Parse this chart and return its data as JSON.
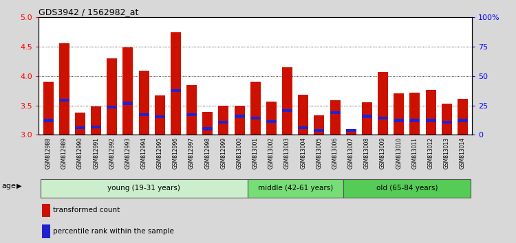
{
  "title": "GDS3942 / 1562982_at",
  "samples": [
    "GSM812988",
    "GSM812989",
    "GSM812990",
    "GSM812991",
    "GSM812992",
    "GSM812993",
    "GSM812994",
    "GSM812995",
    "GSM812996",
    "GSM812997",
    "GSM812998",
    "GSM812999",
    "GSM813000",
    "GSM813001",
    "GSM813002",
    "GSM813003",
    "GSM813004",
    "GSM813005",
    "GSM813006",
    "GSM813007",
    "GSM813008",
    "GSM813009",
    "GSM813010",
    "GSM813011",
    "GSM813012",
    "GSM813013",
    "GSM813014"
  ],
  "transformed_count": [
    3.9,
    4.56,
    3.38,
    3.48,
    4.3,
    4.48,
    4.09,
    3.67,
    4.74,
    3.85,
    3.39,
    3.5,
    3.5,
    3.9,
    3.57,
    4.15,
    3.68,
    3.33,
    3.59,
    3.05,
    3.55,
    4.06,
    3.7,
    3.72,
    3.76,
    3.53,
    3.61
  ],
  "percentile_pos": [
    3.22,
    3.56,
    3.1,
    3.11,
    3.45,
    3.51,
    3.32,
    3.28,
    3.73,
    3.32,
    3.08,
    3.19,
    3.29,
    3.26,
    3.2,
    3.39,
    3.1,
    3.05,
    3.35,
    3.05,
    3.29,
    3.26,
    3.22,
    3.22,
    3.22,
    3.19,
    3.22
  ],
  "percentile_height": [
    0.05,
    0.05,
    0.05,
    0.05,
    0.05,
    0.05,
    0.05,
    0.05,
    0.05,
    0.05,
    0.05,
    0.05,
    0.05,
    0.05,
    0.05,
    0.05,
    0.05,
    0.05,
    0.05,
    0.05,
    0.05,
    0.05,
    0.05,
    0.05,
    0.05,
    0.05,
    0.05
  ],
  "ymin": 3.0,
  "ymax": 5.0,
  "y2min": 0,
  "y2max": 100,
  "yticks": [
    3.0,
    3.5,
    4.0,
    4.5,
    5.0
  ],
  "y2ticks": [
    0,
    25,
    50,
    75,
    100
  ],
  "bar_color": "#CC1100",
  "percentile_color": "#2222CC",
  "groups": [
    {
      "label": "young (19-31 years)",
      "start": 0,
      "end": 13,
      "color": "#CCEECC"
    },
    {
      "label": "middle (42-61 years)",
      "start": 13,
      "end": 19,
      "color": "#77DD77"
    },
    {
      "label": "old (65-84 years)",
      "start": 19,
      "end": 27,
      "color": "#55CC55"
    }
  ],
  "age_label": "age",
  "legend_items": [
    {
      "label": "transformed count",
      "color": "#CC1100"
    },
    {
      "label": "percentile rank within the sample",
      "color": "#2222CC"
    }
  ],
  "fig_bg": "#D8D8D8",
  "plot_bg": "#FFFFFF",
  "xtick_bg": "#C8C8C8"
}
